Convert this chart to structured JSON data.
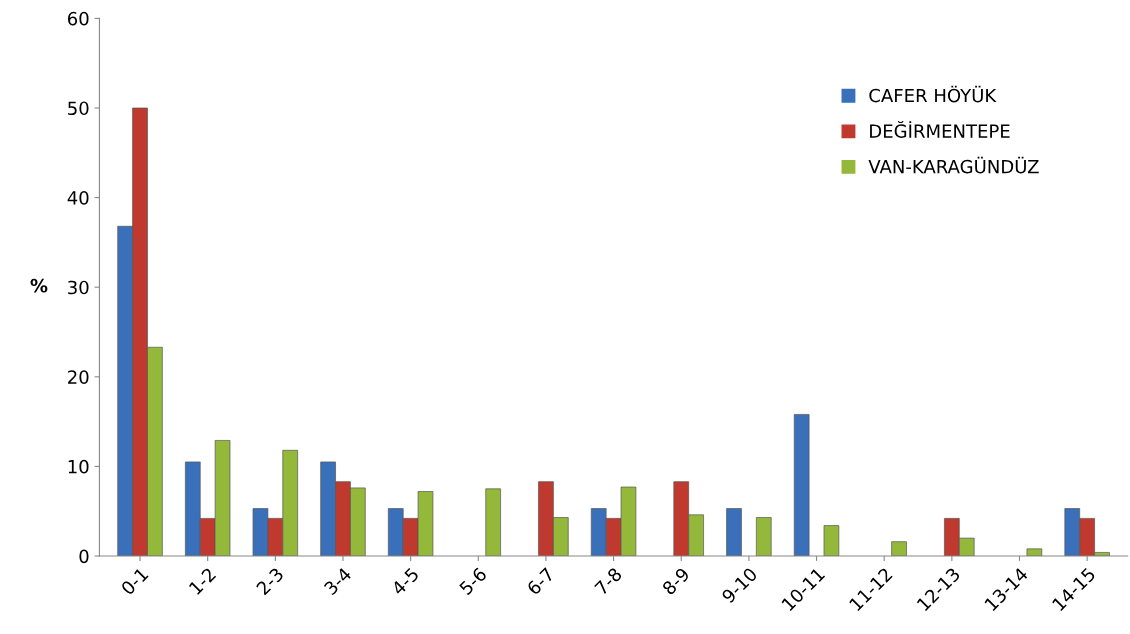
{
  "chart_data": {
    "type": "bar",
    "ylabel": "%",
    "categories": [
      "0-1",
      "1-2",
      "2-3",
      "3-4",
      "4-5",
      "5-6",
      "6-7",
      "7-8",
      "8-9",
      "9-10",
      "10-11",
      "11-12",
      "12-13",
      "13-14",
      "14-15"
    ],
    "series": [
      {
        "name": "CAFER HÖYÜK",
        "color": "#3a6fba",
        "values": [
          36.8,
          10.5,
          5.3,
          10.5,
          5.3,
          null,
          null,
          5.3,
          null,
          5.3,
          15.8,
          null,
          null,
          null,
          5.3
        ]
      },
      {
        "name": "DEĞİRMENTEPE",
        "color": "#c0392f",
        "values": [
          50,
          4.2,
          4.2,
          8.3,
          4.2,
          null,
          8.3,
          4.2,
          8.3,
          null,
          null,
          null,
          4.2,
          null,
          4.2
        ]
      },
      {
        "name": "VAN-KARAGÜNDÜZ",
        "color": "#94b83a",
        "values": [
          23.3,
          12.9,
          11.8,
          7.6,
          7.2,
          7.5,
          4.3,
          7.7,
          4.6,
          4.3,
          3.4,
          1.6,
          2.0,
          0.8,
          0.4
        ]
      }
    ],
    "ylim": [
      0,
      60
    ],
    "yticks": [
      0,
      10,
      20,
      30,
      40,
      50,
      60
    ],
    "grid": false,
    "legend": "top right"
  }
}
